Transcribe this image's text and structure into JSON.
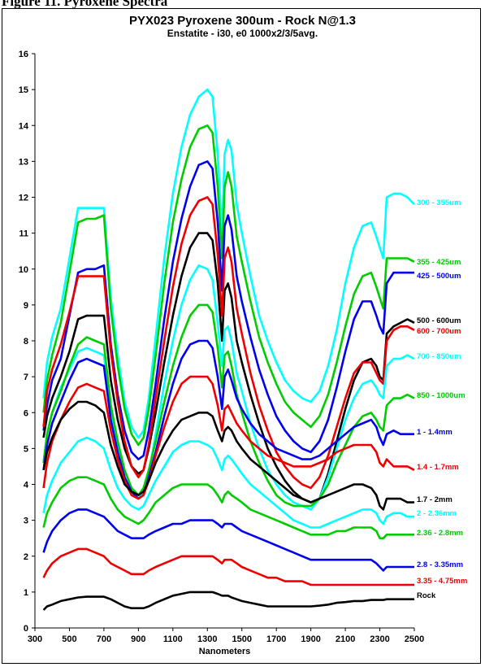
{
  "page": {
    "caption": "Figure 11. Pyroxene Spectra"
  },
  "chart_data": {
    "type": "line",
    "title": "PYX023 Pyroxene 300um - Rock N@1.3",
    "subtitle": "Enstatite - i30, e0 1000x2/3/5avg.",
    "xlabel": "Nanometers",
    "ylabel": "",
    "xlim": [
      300,
      2500
    ],
    "ylim": [
      0,
      16
    ],
    "xticks": [
      300,
      500,
      700,
      900,
      1100,
      1300,
      1500,
      1700,
      1900,
      2100,
      2300,
      2500
    ],
    "yticks": [
      0,
      1,
      2,
      3,
      4,
      5,
      6,
      7,
      8,
      9,
      10,
      11,
      12,
      13,
      14,
      15,
      16
    ],
    "grid": false,
    "legend": "right-edge labels",
    "x": [
      350,
      370,
      400,
      450,
      500,
      550,
      600,
      650,
      700,
      740,
      780,
      820,
      860,
      900,
      930,
      960,
      1000,
      1050,
      1100,
      1150,
      1200,
      1250,
      1300,
      1330,
      1360,
      1385,
      1400,
      1420,
      1440,
      1470,
      1500,
      1550,
      1600,
      1650,
      1700,
      1750,
      1800,
      1850,
      1900,
      1950,
      2000,
      2050,
      2100,
      2150,
      2200,
      2250,
      2280,
      2300,
      2320,
      2340,
      2380,
      2420,
      2460,
      2500
    ],
    "series": [
      {
        "name": "300 - 355um",
        "color": "#00ffff",
        "values": [
          6.4,
          7.4,
          8.1,
          8.9,
          10.3,
          11.7,
          11.7,
          11.7,
          11.7,
          9.2,
          7.6,
          6.3,
          5.6,
          5.3,
          5.5,
          6.4,
          8.1,
          10.3,
          12.1,
          13.4,
          14.3,
          14.8,
          15.0,
          14.8,
          13.2,
          11.0,
          13.2,
          13.6,
          13.3,
          11.8,
          11.0,
          9.8,
          8.7,
          8.0,
          7.4,
          6.9,
          6.6,
          6.4,
          6.3,
          6.6,
          7.3,
          8.3,
          9.6,
          10.6,
          11.2,
          11.3,
          10.9,
          10.6,
          10.3,
          12.0,
          12.1,
          12.1,
          12.0,
          11.8
        ]
      },
      {
        "name": "355 - 425um",
        "color": "#00cc00",
        "values": [
          6.0,
          6.9,
          7.6,
          8.5,
          9.9,
          11.3,
          11.4,
          11.4,
          11.5,
          8.9,
          7.3,
          6.1,
          5.4,
          5.1,
          5.3,
          6.1,
          7.6,
          9.6,
          11.3,
          12.5,
          13.4,
          13.9,
          14.0,
          13.8,
          12.3,
          10.3,
          12.3,
          12.7,
          12.3,
          10.9,
          10.2,
          9.1,
          8.1,
          7.4,
          6.8,
          6.3,
          6.0,
          5.8,
          5.6,
          5.9,
          6.5,
          7.4,
          8.4,
          9.3,
          9.8,
          9.9,
          9.5,
          9.2,
          8.9,
          10.3,
          10.3,
          10.3,
          10.3,
          10.2
        ]
      },
      {
        "name": "425 - 500um",
        "color": "#0000ee",
        "values": [
          5.5,
          6.2,
          6.9,
          7.5,
          8.7,
          9.9,
          10.0,
          10.0,
          10.1,
          7.9,
          6.5,
          5.5,
          4.9,
          4.7,
          4.8,
          5.5,
          6.8,
          8.6,
          10.2,
          11.4,
          12.3,
          12.9,
          13.0,
          12.8,
          11.3,
          9.4,
          11.2,
          11.5,
          11.1,
          9.8,
          9.1,
          8.1,
          7.2,
          6.5,
          5.9,
          5.5,
          5.2,
          5.0,
          4.9,
          5.2,
          5.8,
          6.7,
          7.7,
          8.6,
          9.1,
          9.1,
          8.7,
          8.4,
          8.2,
          9.6,
          9.9,
          9.9,
          9.9,
          9.9
        ]
      },
      {
        "name": "500 - 600um",
        "color": "#000000",
        "values": [
          5.3,
          5.9,
          6.4,
          7.0,
          7.7,
          8.6,
          8.7,
          8.7,
          8.7,
          6.9,
          5.8,
          5.0,
          4.5,
          4.3,
          4.4,
          5.0,
          6.0,
          7.4,
          8.7,
          9.8,
          10.6,
          11.0,
          11.0,
          10.8,
          9.6,
          8.0,
          9.4,
          9.6,
          9.2,
          8.0,
          7.4,
          6.5,
          5.7,
          5.0,
          4.5,
          4.1,
          3.8,
          3.6,
          3.5,
          3.6,
          4.3,
          5.2,
          6.1,
          6.9,
          7.4,
          7.5,
          7.3,
          7.0,
          6.9,
          8.2,
          8.4,
          8.5,
          8.6,
          8.5
        ]
      },
      {
        "name": "600 - 700um",
        "color": "#ee0000",
        "values": [
          5.6,
          6.6,
          7.2,
          7.9,
          8.8,
          9.8,
          9.8,
          9.8,
          9.8,
          7.7,
          6.3,
          5.2,
          4.5,
          4.2,
          4.4,
          5.1,
          6.4,
          8.0,
          9.5,
          10.7,
          11.5,
          11.9,
          12.0,
          11.8,
          10.4,
          8.7,
          10.3,
          10.6,
          10.2,
          8.9,
          8.2,
          7.1,
          6.2,
          5.5,
          4.9,
          4.5,
          4.2,
          4.0,
          3.9,
          4.2,
          4.8,
          5.6,
          6.4,
          7.1,
          7.4,
          7.4,
          7.1,
          6.9,
          6.8,
          8.0,
          8.3,
          8.4,
          8.4,
          8.3
        ]
      },
      {
        "name": "700 - 850um",
        "color": "#00ffff",
        "values": [
          4.6,
          5.4,
          6.0,
          6.7,
          7.2,
          7.7,
          7.8,
          7.7,
          7.6,
          6.0,
          5.0,
          4.2,
          3.7,
          3.6,
          3.8,
          4.3,
          5.4,
          6.8,
          8.0,
          9.0,
          9.7,
          10.1,
          10.0,
          9.7,
          8.5,
          7.3,
          8.3,
          8.4,
          8.0,
          7.1,
          6.6,
          5.7,
          5.0,
          4.4,
          4.0,
          3.7,
          3.5,
          3.4,
          3.3,
          3.6,
          4.2,
          5.0,
          5.8,
          6.4,
          6.8,
          6.9,
          6.7,
          6.5,
          6.4,
          7.3,
          7.5,
          7.5,
          7.6,
          7.5
        ]
      },
      {
        "name": "850 - 1000um",
        "color": "#00cc00",
        "values": [
          4.6,
          5.4,
          6.0,
          6.6,
          7.3,
          7.9,
          8.1,
          8.0,
          7.9,
          6.2,
          5.2,
          4.4,
          3.9,
          3.7,
          3.9,
          4.4,
          5.2,
          6.3,
          7.3,
          8.1,
          8.7,
          9.0,
          9.0,
          8.8,
          7.8,
          6.7,
          7.6,
          7.7,
          7.3,
          6.5,
          6.0,
          5.2,
          4.6,
          4.1,
          3.7,
          3.5,
          3.4,
          3.4,
          3.4,
          3.6,
          4.0,
          4.6,
          5.1,
          5.6,
          5.9,
          6.0,
          5.8,
          5.6,
          5.5,
          6.2,
          6.4,
          6.4,
          6.5,
          6.4
        ]
      },
      {
        "name": "1 - 1.4mm",
        "color": "#0000ee",
        "values": [
          4.4,
          5.1,
          5.7,
          6.3,
          6.9,
          7.4,
          7.5,
          7.4,
          7.3,
          5.8,
          4.9,
          4.2,
          3.8,
          3.6,
          3.7,
          4.2,
          4.9,
          5.9,
          6.8,
          7.5,
          7.9,
          8.0,
          8.0,
          7.8,
          7.0,
          6.1,
          7.0,
          7.2,
          6.9,
          6.4,
          6.1,
          5.7,
          5.4,
          5.2,
          5.0,
          4.9,
          4.8,
          4.7,
          4.7,
          4.8,
          5.0,
          5.2,
          5.4,
          5.6,
          5.7,
          5.8,
          5.6,
          5.3,
          5.1,
          5.4,
          5.5,
          5.4,
          5.4,
          5.4
        ]
      },
      {
        "name": "1.4 - 1.7mm",
        "color": "#ee0000",
        "values": [
          3.9,
          4.6,
          5.2,
          5.8,
          6.3,
          6.7,
          6.8,
          6.7,
          6.6,
          5.5,
          4.7,
          4.1,
          3.7,
          3.6,
          3.7,
          4.1,
          4.8,
          5.6,
          6.3,
          6.8,
          7.0,
          7.0,
          7.0,
          6.8,
          6.2,
          5.5,
          6.1,
          6.2,
          6.0,
          5.7,
          5.5,
          5.2,
          5.0,
          4.8,
          4.7,
          4.6,
          4.5,
          4.5,
          4.5,
          4.6,
          4.7,
          4.9,
          5.0,
          5.1,
          5.1,
          5.1,
          4.9,
          4.6,
          4.5,
          4.7,
          4.5,
          4.5,
          4.5,
          4.4
        ]
      },
      {
        "name": "1.7 - 2mm",
        "color": "#000000",
        "values": [
          4.4,
          4.9,
          5.3,
          5.8,
          6.1,
          6.3,
          6.3,
          6.2,
          6.0,
          5.1,
          4.5,
          4.0,
          3.8,
          3.7,
          3.8,
          4.1,
          4.6,
          5.1,
          5.5,
          5.8,
          5.9,
          6.0,
          6.0,
          5.9,
          5.5,
          5.2,
          5.5,
          5.6,
          5.5,
          5.2,
          5.0,
          4.7,
          4.5,
          4.3,
          4.1,
          3.9,
          3.7,
          3.6,
          3.5,
          3.6,
          3.7,
          3.8,
          3.9,
          4.0,
          4.0,
          3.9,
          3.7,
          3.4,
          3.3,
          3.6,
          3.6,
          3.6,
          3.5,
          3.5
        ]
      },
      {
        "name": "2 - 2.36mm",
        "color": "#00ffff",
        "values": [
          3.2,
          3.7,
          4.1,
          4.6,
          4.9,
          5.2,
          5.3,
          5.2,
          5.0,
          4.4,
          3.9,
          3.6,
          3.4,
          3.3,
          3.4,
          3.7,
          4.1,
          4.5,
          4.9,
          5.1,
          5.2,
          5.2,
          5.1,
          5.0,
          4.7,
          4.4,
          4.7,
          4.8,
          4.7,
          4.5,
          4.3,
          4.0,
          3.8,
          3.6,
          3.4,
          3.2,
          3.0,
          2.9,
          2.8,
          2.8,
          2.9,
          3.0,
          3.1,
          3.2,
          3.3,
          3.3,
          3.2,
          3.0,
          2.9,
          3.1,
          3.2,
          3.2,
          3.1,
          3.1
        ]
      },
      {
        "name": "2.36 - 2.8mm",
        "color": "#00cc00",
        "values": [
          2.8,
          3.2,
          3.5,
          3.9,
          4.1,
          4.2,
          4.2,
          4.1,
          4.0,
          3.6,
          3.3,
          3.1,
          3.0,
          2.9,
          3.0,
          3.2,
          3.5,
          3.7,
          3.9,
          4.0,
          4.0,
          4.0,
          4.0,
          3.9,
          3.7,
          3.5,
          3.7,
          3.8,
          3.7,
          3.6,
          3.5,
          3.3,
          3.2,
          3.1,
          3.0,
          2.9,
          2.8,
          2.7,
          2.6,
          2.6,
          2.6,
          2.7,
          2.7,
          2.8,
          2.8,
          2.8,
          2.7,
          2.5,
          2.5,
          2.6,
          2.6,
          2.6,
          2.6,
          2.6
        ]
      },
      {
        "name": "2.8 - 3.35mm",
        "color": "#0000ee",
        "values": [
          2.1,
          2.4,
          2.7,
          3.0,
          3.2,
          3.3,
          3.3,
          3.2,
          3.1,
          2.9,
          2.7,
          2.6,
          2.5,
          2.5,
          2.5,
          2.6,
          2.7,
          2.8,
          2.9,
          2.9,
          3.0,
          3.0,
          3.0,
          3.0,
          2.9,
          2.8,
          2.9,
          2.9,
          2.9,
          2.8,
          2.7,
          2.6,
          2.5,
          2.4,
          2.3,
          2.2,
          2.1,
          2.0,
          1.9,
          1.9,
          1.9,
          1.9,
          1.9,
          1.9,
          1.9,
          1.9,
          1.8,
          1.7,
          1.6,
          1.7,
          1.7,
          1.7,
          1.7,
          1.7
        ]
      },
      {
        "name": "3.35 - 4.75mm",
        "color": "#ee0000",
        "values": [
          1.4,
          1.6,
          1.8,
          2.0,
          2.1,
          2.2,
          2.2,
          2.1,
          2.0,
          1.8,
          1.7,
          1.6,
          1.5,
          1.5,
          1.5,
          1.6,
          1.7,
          1.8,
          1.9,
          2.0,
          2.0,
          2.0,
          2.0,
          2.0,
          1.9,
          1.8,
          1.9,
          1.9,
          1.9,
          1.8,
          1.7,
          1.6,
          1.5,
          1.4,
          1.4,
          1.3,
          1.3,
          1.3,
          1.2,
          1.2,
          1.2,
          1.2,
          1.2,
          1.2,
          1.2,
          1.2,
          1.2,
          1.2,
          1.2,
          1.2,
          1.2,
          1.2,
          1.2,
          1.2
        ]
      },
      {
        "name": "Rock",
        "color": "#000000",
        "values": [
          0.5,
          0.6,
          0.65,
          0.75,
          0.8,
          0.85,
          0.87,
          0.87,
          0.87,
          0.8,
          0.7,
          0.6,
          0.55,
          0.55,
          0.55,
          0.6,
          0.7,
          0.8,
          0.9,
          0.95,
          1.0,
          1.0,
          1.0,
          1.0,
          0.95,
          0.9,
          0.9,
          0.9,
          0.85,
          0.8,
          0.75,
          0.7,
          0.65,
          0.6,
          0.6,
          0.6,
          0.6,
          0.6,
          0.6,
          0.62,
          0.65,
          0.7,
          0.72,
          0.75,
          0.75,
          0.78,
          0.78,
          0.78,
          0.78,
          0.8,
          0.8,
          0.8,
          0.8,
          0.8
        ]
      }
    ]
  }
}
